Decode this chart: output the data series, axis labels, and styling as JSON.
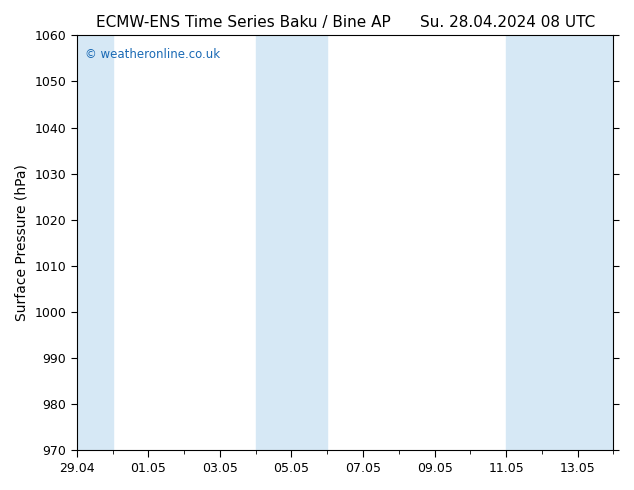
{
  "title_left": "ECMW-ENS Time Series Baku / Bine AP",
  "title_right": "Su. 28.04.2024 08 UTC",
  "ylabel": "Surface Pressure (hPa)",
  "bg_color": "#ffffff",
  "plot_bg_color": "#ffffff",
  "ylim": [
    970,
    1060
  ],
  "yticks": [
    970,
    980,
    990,
    1000,
    1010,
    1020,
    1030,
    1040,
    1050,
    1060
  ],
  "xtick_labels": [
    "29.04",
    "01.05",
    "03.05",
    "05.05",
    "07.05",
    "09.05",
    "11.05",
    "13.05"
  ],
  "watermark": "© weatheronline.co.uk",
  "watermark_color": "#1a6ab5",
  "shaded_color": "#d6e8f5",
  "title_fontsize": 11,
  "tick_fontsize": 9,
  "ylabel_fontsize": 10
}
